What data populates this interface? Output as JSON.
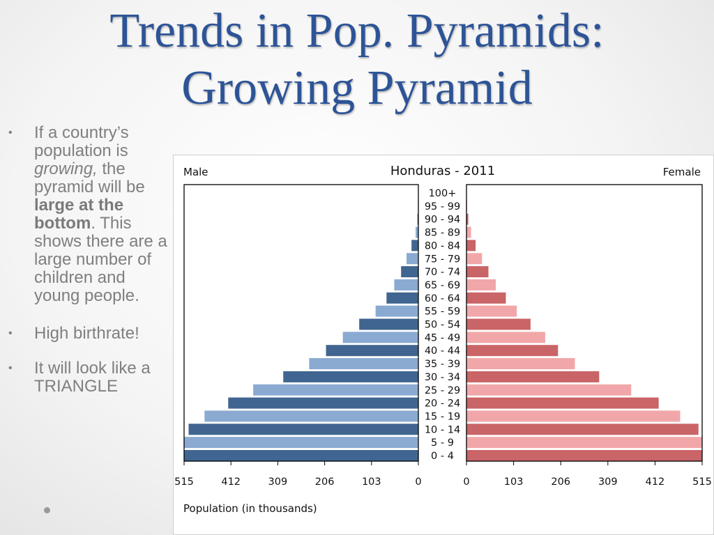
{
  "slide": {
    "title_line1": "Trends in Pop. Pyramids:",
    "title_line2": "Growing Pyramid",
    "bullets": {
      "b1": {
        "t1": "If a country’s population is ",
        "t2": "growing,",
        "t3": " the pyramid will be ",
        "t4": "large at the bottom",
        "t5": ". This shows there are a large number of children and young people."
      },
      "b2": "High birthrate!",
      "b3": "It will look like a TRIANGLE"
    },
    "bullet_glyph": "•"
  },
  "chart_data": {
    "type": "bar",
    "orientation": "horizontal-population-pyramid",
    "title": "Honduras - 2011",
    "left_label": "Male",
    "right_label": "Female",
    "xlabel": "Population (in thousands)",
    "xlim": [
      0,
      515
    ],
    "xticks": [
      "515",
      "412",
      "309",
      "206",
      "103",
      "0",
      "0",
      "103",
      "206",
      "309",
      "412",
      "515"
    ],
    "categories": [
      "100+",
      "95 - 99",
      "90 - 94",
      "85 - 89",
      "80 - 84",
      "75 - 79",
      "70 - 74",
      "65 - 69",
      "60 - 64",
      "55 - 59",
      "50 - 54",
      "45 - 49",
      "40 - 44",
      "35 - 39",
      "30 - 34",
      "25 - 29",
      "20 - 24",
      "15 - 19",
      "10 - 14",
      "5 - 9",
      "0 - 4"
    ],
    "series": [
      {
        "name": "Male",
        "values": [
          0.3,
          1,
          2,
          6,
          15,
          26,
          38,
          53,
          70,
          94,
          130,
          166,
          203,
          240,
          297,
          363,
          418,
          470,
          505,
          517,
          517
        ],
        "colors": [
          "#406590",
          "#8aaad2"
        ]
      },
      {
        "name": "Female",
        "values": [
          0.5,
          1.5,
          4,
          10,
          20,
          34,
          48,
          64,
          86,
          110,
          140,
          172,
          200,
          237,
          290,
          360,
          420,
          467,
          507,
          516,
          516
        ],
        "colors": [
          "#c96467",
          "#f1a7a9"
        ]
      }
    ],
    "grid": false
  }
}
